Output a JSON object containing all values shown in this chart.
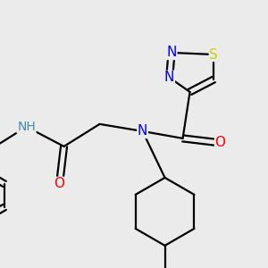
{
  "background_color": "#ebebeb",
  "colors": {
    "N": "#0000ff",
    "O": "#ff0000",
    "S": "#cccc00",
    "C": "#000000",
    "H": "#4488aa",
    "bond": "#000000"
  },
  "bond_width": 1.6,
  "font_size_atom": 10.5
}
